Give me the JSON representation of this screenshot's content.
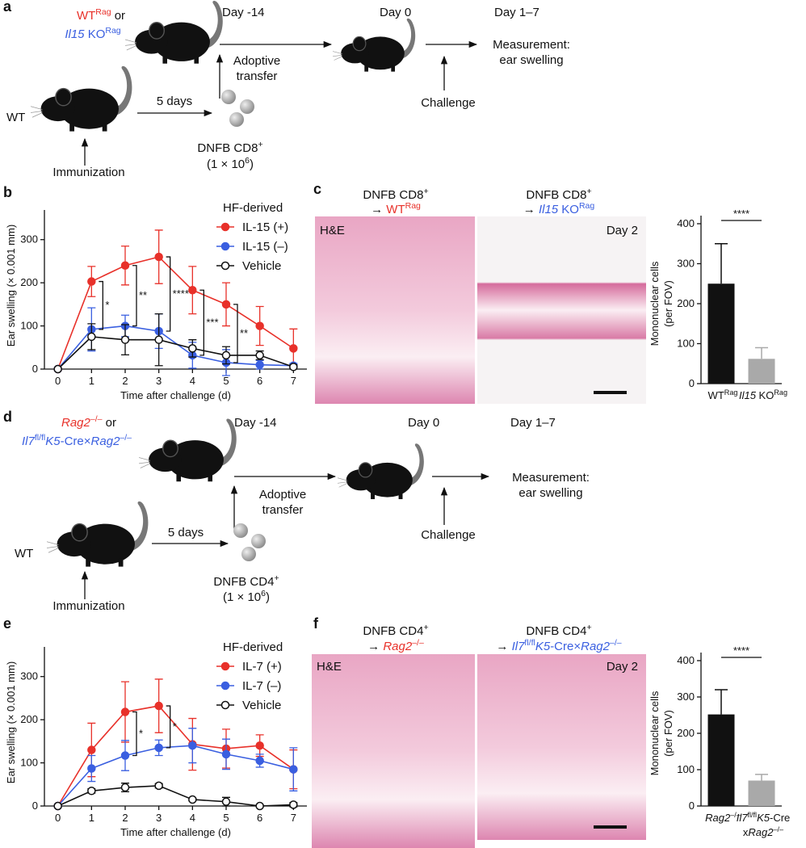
{
  "panel_labels": [
    "a",
    "b",
    "c",
    "d",
    "e",
    "f"
  ],
  "scheme_a": {
    "recipients": [
      {
        "runs": [
          {
            "t": "WT",
            "color": "#e8312a"
          },
          {
            "t": "Rag",
            "sup": true,
            "color": "#e8312a"
          },
          {
            "t": " or"
          }
        ]
      },
      {
        "runs": [
          {
            "t": "Il15",
            "i": true,
            "color": "#3a5fe0"
          },
          {
            "t": " KO",
            "color": "#3a5fe0"
          },
          {
            "t": "Rag",
            "sup": true,
            "color": "#3a5fe0"
          }
        ]
      }
    ],
    "day_transfer": "Day -14",
    "day_challenge": "Day 0",
    "day_measure": "Day 1–7",
    "measurement": [
      "Measurement:",
      "ear swelling"
    ],
    "donor": "WT",
    "interval": "5 days",
    "transfer": [
      "Adoptive",
      "transfer"
    ],
    "challenge": "Challenge",
    "immunization": "Immunization",
    "cells": [
      {
        "t": "DNFB CD8"
      },
      {
        "t": "+",
        "sup": true
      }
    ],
    "dose": [
      {
        "t": "(1 × 10"
      },
      {
        "t": "6",
        "sup": true
      },
      {
        "t": ")"
      }
    ]
  },
  "scheme_d": {
    "recipients": [
      {
        "runs": [
          {
            "t": "Rag2",
            "i": true,
            "color": "#e8312a"
          },
          {
            "t": "–/–",
            "sup": true,
            "color": "#e8312a"
          },
          {
            "t": "  or"
          }
        ]
      },
      {
        "runs": [
          {
            "t": "Il7",
            "i": true,
            "color": "#3a5fe0"
          },
          {
            "t": "fl/fl",
            "sup": true,
            "color": "#3a5fe0"
          },
          {
            "t": "K5",
            "i": true,
            "color": "#3a5fe0"
          },
          {
            "t": "-Cre×",
            "color": "#3a5fe0"
          },
          {
            "t": "Rag2",
            "i": true,
            "color": "#3a5fe0"
          },
          {
            "t": "–/–",
            "sup": true,
            "color": "#3a5fe0"
          }
        ]
      }
    ],
    "day_transfer": "Day -14",
    "day_challenge": "Day 0",
    "day_measure": "Day 1–7",
    "measurement": [
      "Measurement:",
      "ear swelling"
    ],
    "donor": "WT",
    "interval": "5 days",
    "transfer": [
      "Adoptive",
      "transfer"
    ],
    "challenge": "Challenge",
    "immunization": "Immunization",
    "cells": [
      {
        "t": "DNFB CD4"
      },
      {
        "t": "+",
        "sup": true
      }
    ],
    "dose": [
      {
        "t": "(1 × 10"
      },
      {
        "t": "6",
        "sup": true
      },
      {
        "t": ")"
      }
    ]
  },
  "histology_c": {
    "headings": [
      [
        [
          {
            "t": "DNFB CD8"
          },
          {
            "t": "+",
            "sup": true
          }
        ],
        [
          {
            "t": "→ "
          },
          {
            "t": "WT",
            "color": "#e8312a"
          },
          {
            "t": "Rag",
            "sup": true,
            "color": "#e8312a"
          }
        ]
      ],
      [
        [
          {
            "t": "DNFB CD8"
          },
          {
            "t": "+",
            "sup": true
          }
        ],
        [
          {
            "t": "→ "
          },
          {
            "t": "Il15",
            "i": true,
            "color": "#3a5fe0"
          },
          {
            "t": " KO",
            "color": "#3a5fe0"
          },
          {
            "t": "Rag",
            "sup": true,
            "color": "#3a5fe0"
          }
        ]
      ]
    ],
    "stain": "H&E",
    "day": "Day 2"
  },
  "histology_f": {
    "headings": [
      [
        [
          {
            "t": "DNFB CD4"
          },
          {
            "t": "+",
            "sup": true
          }
        ],
        [
          {
            "t": "→ "
          },
          {
            "t": "Rag2",
            "i": true,
            "color": "#e8312a"
          },
          {
            "t": "–/–",
            "sup": true,
            "color": "#e8312a"
          }
        ]
      ],
      [
        [
          {
            "t": "DNFB CD4"
          },
          {
            "t": "+",
            "sup": true
          }
        ],
        [
          {
            "t": "→ "
          },
          {
            "t": "Il7",
            "i": true,
            "color": "#3a5fe0"
          },
          {
            "t": "fl/fl",
            "sup": true,
            "color": "#3a5fe0"
          },
          {
            "t": "K5",
            "i": true,
            "color": "#3a5fe0"
          },
          {
            "t": "-Cre×",
            "color": "#3a5fe0"
          },
          {
            "t": "Rag2",
            "i": true,
            "color": "#3a5fe0"
          },
          {
            "t": "–/–",
            "sup": true,
            "color": "#3a5fe0"
          }
        ]
      ]
    ],
    "stain": "H&E",
    "day": "Day 2"
  },
  "chart_data": [
    {
      "type": "line",
      "ylabel": "Ear swelling (× 0.001 mm)",
      "xlabel": "Time after challenge (d)",
      "legend_title": "HF-derived",
      "x": [
        0,
        1,
        2,
        3,
        4,
        5,
        6,
        7
      ],
      "xlim": [
        -0.4,
        7.4
      ],
      "ylim": [
        0,
        350
      ],
      "xticks": [
        0,
        1,
        2,
        3,
        4,
        5,
        6,
        7
      ],
      "yticks": [
        0,
        100,
        200,
        300
      ],
      "series": [
        {
          "name": "IL-15 (+)",
          "color": "#e8312a",
          "marker": "filled",
          "values": [
            0,
            203,
            240,
            260,
            183,
            150,
            100,
            48
          ],
          "errors": [
            0,
            35,
            45,
            62,
            55,
            50,
            45,
            45
          ]
        },
        {
          "name": "IL-15 (–)",
          "color": "#3a5fe0",
          "marker": "filled",
          "values": [
            0,
            92,
            100,
            88,
            32,
            15,
            10,
            8
          ],
          "errors": [
            0,
            50,
            25,
            40,
            30,
            30,
            10,
            5
          ]
        },
        {
          "name": "Vehicle",
          "color": "#111111",
          "marker": "open",
          "values": [
            0,
            75,
            68,
            68,
            48,
            32,
            32,
            5
          ],
          "errors": [
            0,
            30,
            35,
            60,
            20,
            20,
            10,
            5
          ]
        }
      ],
      "annotations": [
        {
          "x": 1,
          "text": "*"
        },
        {
          "x": 2,
          "text": "**"
        },
        {
          "x": 3,
          "text": "****"
        },
        {
          "x": 4,
          "text": "***"
        },
        {
          "x": 5,
          "text": "**"
        }
      ]
    },
    {
      "type": "bar",
      "ylabel": [
        "Mononuclear cells",
        "(per FOV)"
      ],
      "categories": [
        [
          [
            {
              "t": "WT"
            },
            {
              "t": "Rag",
              "sup": true
            }
          ]
        ],
        [
          [
            {
              "t": "Il15",
              "i": true
            },
            {
              "t": " KO"
            },
            {
              "t": "Rag",
              "sup": true
            }
          ]
        ]
      ],
      "values": [
        250,
        62
      ],
      "errors": [
        100,
        28
      ],
      "colors": [
        "#111111",
        "#a9a9a9"
      ],
      "ylim": [
        0,
        400
      ],
      "yticks": [
        0,
        100,
        200,
        300,
        400
      ],
      "annotation": "****"
    },
    {
      "type": "line",
      "ylabel": "Ear swelling (× 0.001 mm)",
      "xlabel": "Time after challenge (d)",
      "legend_title": "HF-derived",
      "x": [
        0,
        1,
        2,
        3,
        4,
        5,
        6,
        7
      ],
      "xlim": [
        -0.4,
        7.4
      ],
      "ylim": [
        0,
        350
      ],
      "xticks": [
        0,
        1,
        2,
        3,
        4,
        5,
        6,
        7
      ],
      "yticks": [
        0,
        100,
        200,
        300
      ],
      "series": [
        {
          "name": "IL-7 (+)",
          "color": "#e8312a",
          "marker": "filled",
          "values": [
            0,
            130,
            218,
            232,
            143,
            133,
            140,
            85
          ],
          "errors": [
            0,
            62,
            70,
            62,
            60,
            45,
            25,
            45
          ]
        },
        {
          "name": "IL-7 (–)",
          "color": "#3a5fe0",
          "marker": "filled",
          "values": [
            0,
            87,
            117,
            135,
            140,
            120,
            105,
            85
          ],
          "errors": [
            0,
            30,
            35,
            18,
            40,
            35,
            15,
            50
          ]
        },
        {
          "name": "Vehicle",
          "color": "#111111",
          "marker": "open",
          "values": [
            0,
            35,
            43,
            47,
            15,
            10,
            0,
            3
          ],
          "errors": [
            0,
            5,
            10,
            5,
            3,
            10,
            2,
            5
          ]
        }
      ],
      "annotations": [
        {
          "x": 2,
          "text": "*"
        },
        {
          "x": 3,
          "text": "*"
        }
      ]
    },
    {
      "type": "bar",
      "ylabel": [
        "Mononuclear cells",
        "(per FOV)"
      ],
      "categories": [
        [
          [
            {
              "t": "Rag2",
              "i": true
            },
            {
              "t": "–/–",
              "sup": true
            }
          ]
        ],
        [
          [
            {
              "t": "Il7",
              "i": true
            },
            {
              "t": "fl/fl",
              "sup": true
            },
            {
              "t": "K5",
              "i": true
            },
            {
              "t": "-Cre"
            }
          ],
          [
            {
              "t": "x"
            },
            {
              "t": "Rag2",
              "i": true
            },
            {
              "t": "–/–",
              "sup": true
            }
          ]
        ]
      ],
      "values": [
        252,
        70
      ],
      "errors": [
        68,
        17
      ],
      "colors": [
        "#111111",
        "#a9a9a9"
      ],
      "ylim": [
        0,
        400
      ],
      "yticks": [
        0,
        100,
        200,
        300,
        400
      ],
      "annotation": "****"
    }
  ]
}
